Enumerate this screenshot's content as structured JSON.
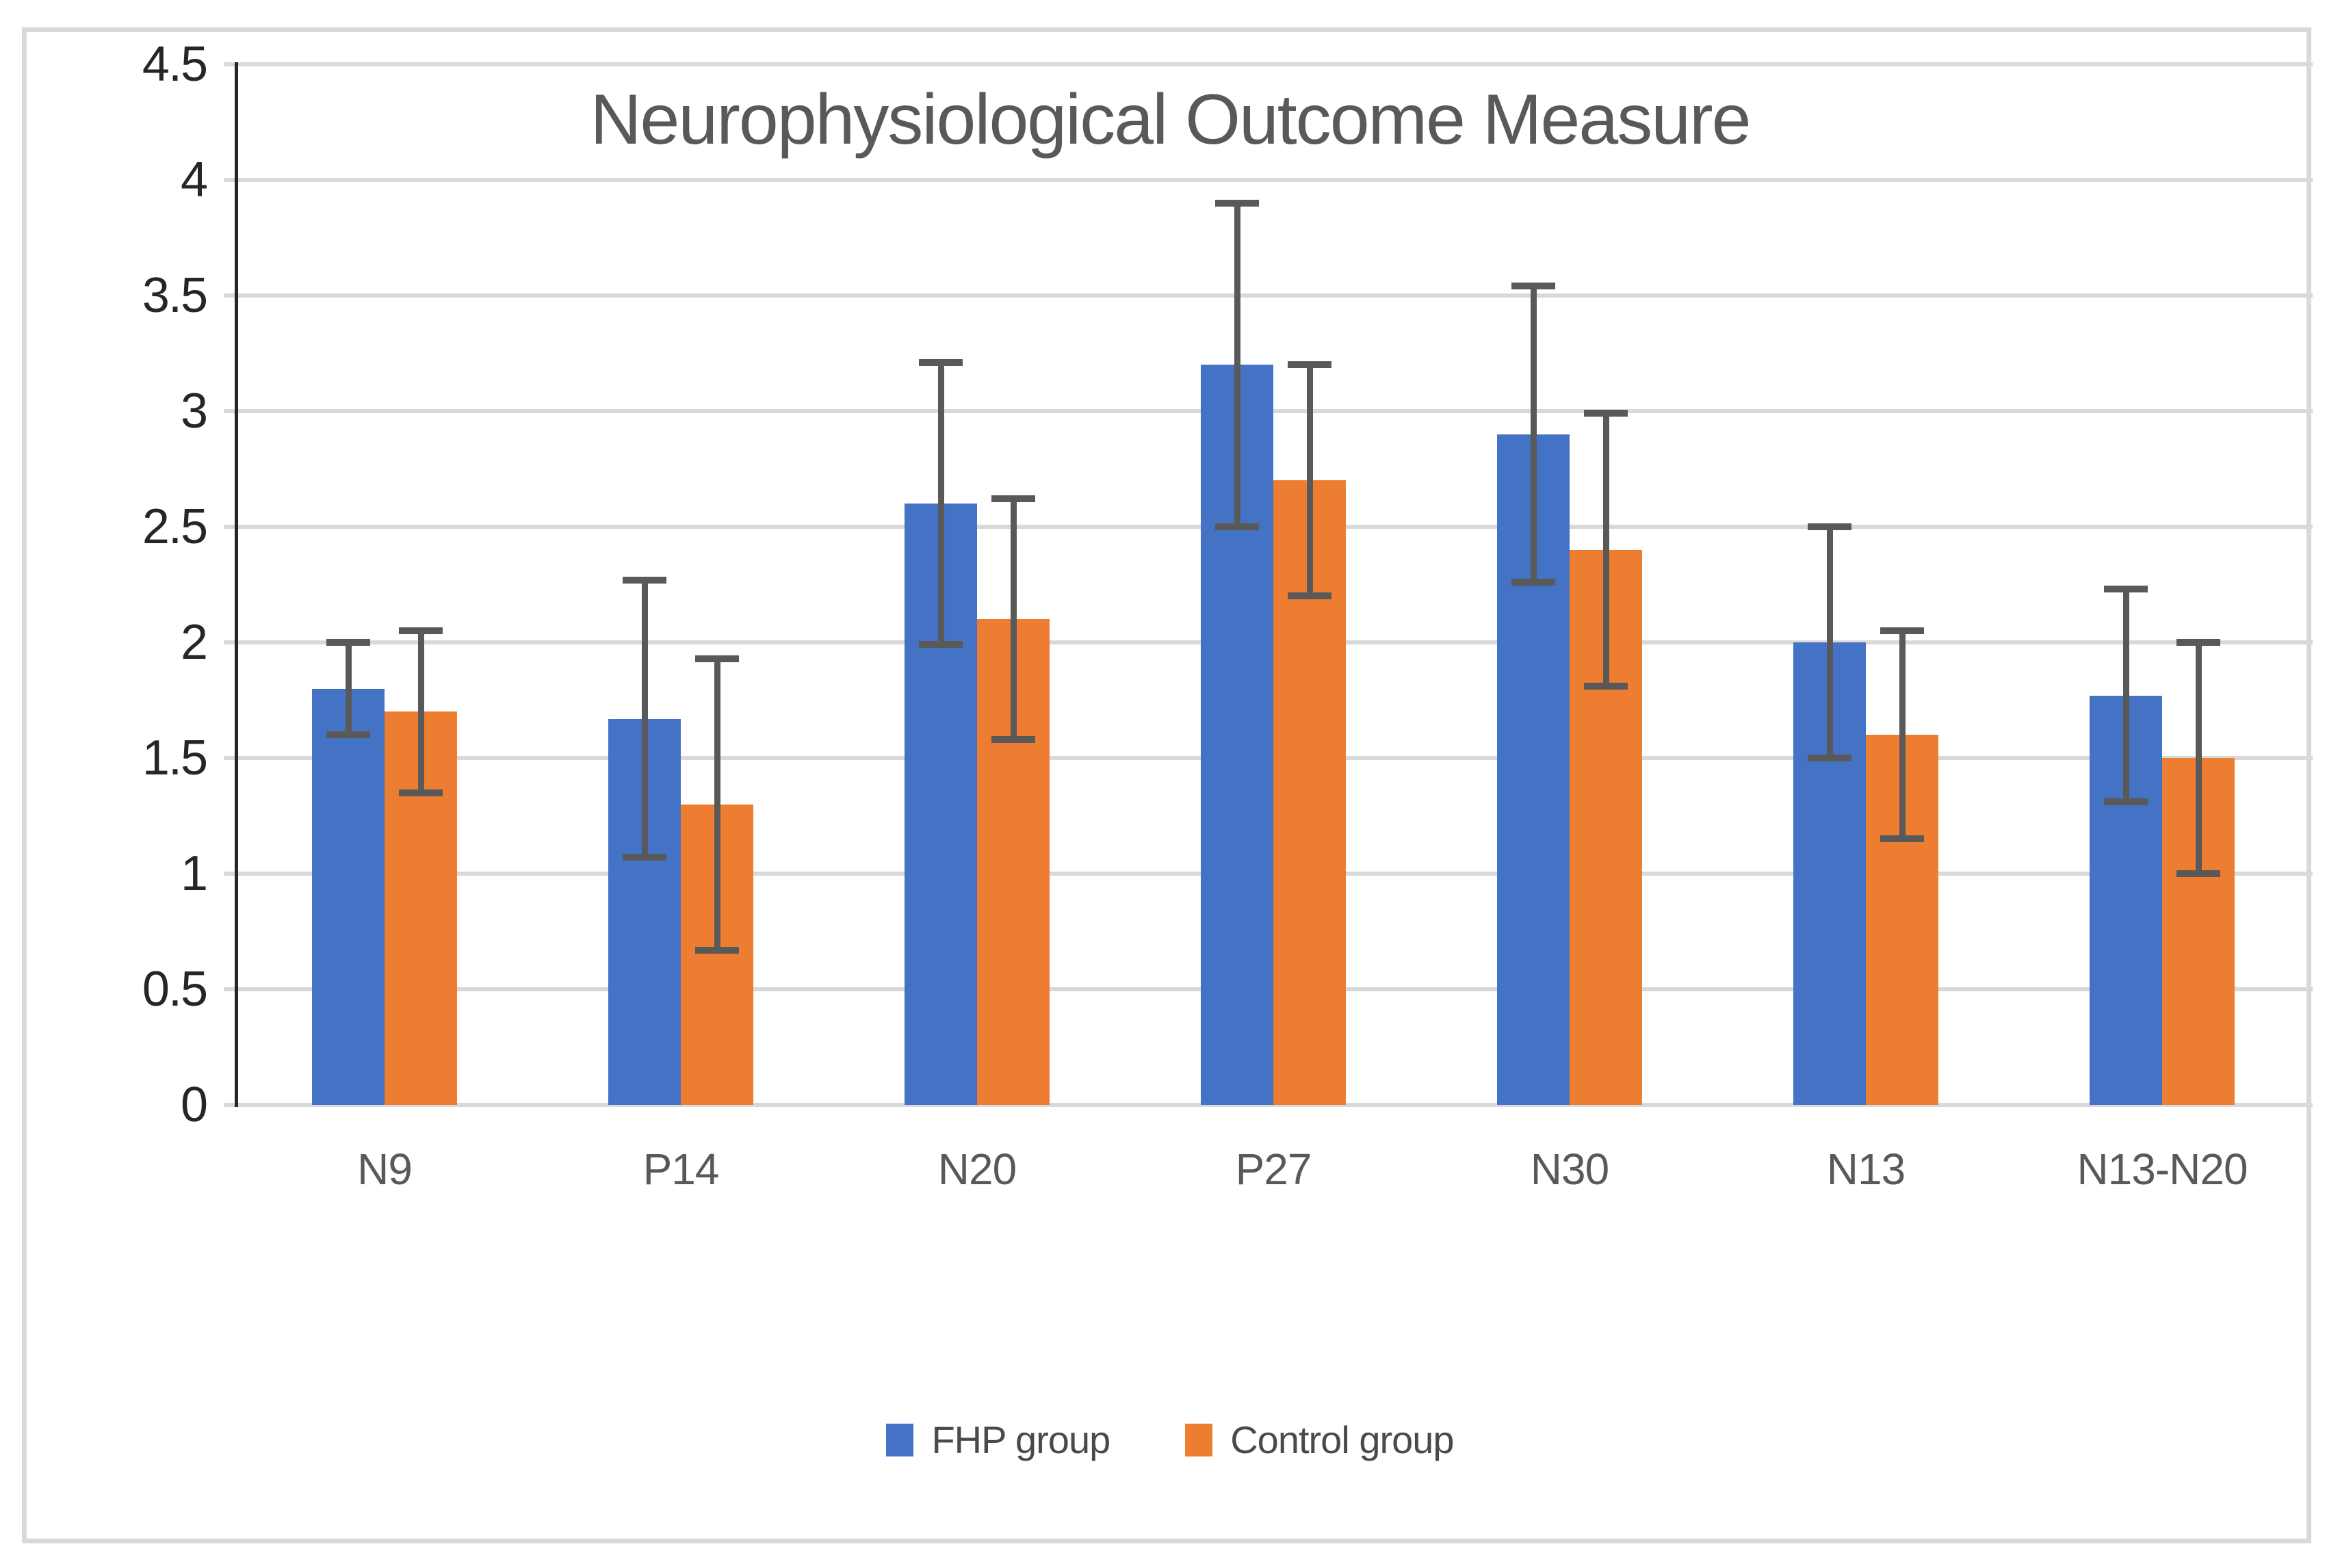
{
  "chart_data": {
    "type": "bar",
    "title": "Neurophysiological Outcome Measure",
    "categories": [
      "N9",
      "P14",
      "N20",
      "P27",
      "N30",
      "N13",
      "N13-N20"
    ],
    "series": [
      {
        "name": "FHP group",
        "color": "#4472C4",
        "values": [
          1.8,
          1.67,
          2.6,
          3.2,
          2.9,
          2.0,
          1.77
        ],
        "errors": [
          0.2,
          0.6,
          0.61,
          0.7,
          0.64,
          0.5,
          0.46
        ]
      },
      {
        "name": "Control group",
        "color": "#ED7D31",
        "values": [
          1.7,
          1.3,
          2.1,
          2.7,
          2.4,
          1.6,
          1.5
        ],
        "errors": [
          0.35,
          0.63,
          0.52,
          0.5,
          0.59,
          0.45,
          0.5
        ]
      }
    ],
    "xlabel": "",
    "ylabel": "",
    "ylim": [
      0,
      4.5
    ],
    "y_step": 0.5,
    "y_tick_labels": [
      "0",
      "0.5",
      "1",
      "1.5",
      "2",
      "2.5",
      "3",
      "3.5",
      "4",
      "4.5"
    ],
    "grid": true,
    "legend_position": "bottom",
    "colors": {
      "fhp_bar": "#4472C4",
      "control_bar": "#ED7D31",
      "error_bar": "#595959",
      "gridline": "#D9D9D9",
      "frame_border": "#D9D9D9",
      "axis_line": "#262626",
      "title_text": "#595959",
      "x_label_text": "#595959",
      "y_label_text": "#262626"
    }
  }
}
